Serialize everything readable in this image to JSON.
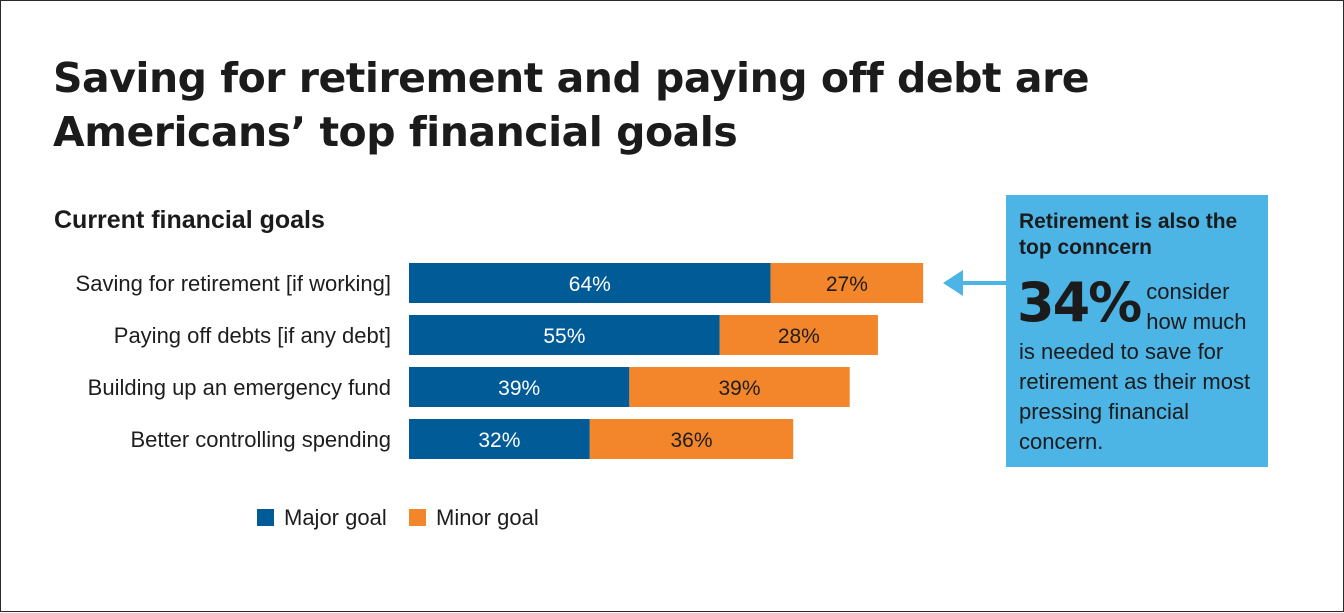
{
  "title": "Saving for retirement and paying off debt are Americans’ top financial goals",
  "chart_data": {
    "type": "bar",
    "orientation": "horizontal",
    "stacked": true,
    "title": "Current financial goals",
    "categories": [
      "Saving for retirement [if working]",
      "Paying off debts [if any debt]",
      "Building up an emergency fund",
      "Better controlling spending"
    ],
    "series": [
      {
        "name": "Major goal",
        "color": "#005b96",
        "values": [
          64,
          55,
          39,
          32
        ],
        "labels": [
          "64%",
          "55%",
          "39%",
          "32%"
        ]
      },
      {
        "name": "Minor goal",
        "color": "#f3862a",
        "values": [
          27,
          28,
          39,
          36
        ],
        "labels": [
          "27%",
          "28%",
          "39%",
          "36%"
        ]
      }
    ],
    "xlim": [
      0,
      100
    ],
    "grid": false,
    "legend_position": "bottom-left"
  },
  "callout": {
    "background": "#4cb5e6",
    "arrow_color": "#4cb5e6",
    "title": "Retirement is also the top conncern",
    "stat": "34%",
    "text": "consider how much is needed to save for retirement as their most pressing financial concern."
  }
}
